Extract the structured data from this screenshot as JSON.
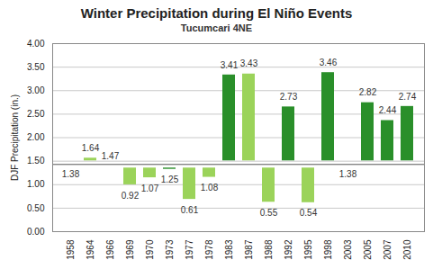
{
  "chart_data": {
    "type": "bar",
    "title": "Winter Precipitation during El Niño Events",
    "subtitle": "Tucumcari 4NE",
    "y_label": "DJF Precipitation (in.)",
    "categories": [
      "1958",
      "1964",
      "1966",
      "1969",
      "1970",
      "1973",
      "1977",
      "1978",
      "1983",
      "1987",
      "1988",
      "1992",
      "1995",
      "1998",
      "2003",
      "2005",
      "2007",
      "2010"
    ],
    "values": [
      1.38,
      1.64,
      1.47,
      0.92,
      1.07,
      1.25,
      0.61,
      1.08,
      3.41,
      3.43,
      0.55,
      2.73,
      0.54,
      3.46,
      1.38,
      2.82,
      2.44,
      2.74
    ],
    "baseline": 1.43,
    "colors": [
      "#9bd35a",
      "#9bd35a",
      "#9bd35a",
      "#9bd35a",
      "#9bd35a",
      "#2a8f2a",
      "#9bd35a",
      "#9bd35a",
      "#2a8f2a",
      "#9bd35a",
      "#9bd35a",
      "#2a8f2a",
      "#9bd35a",
      "#2a8f2a",
      "#9bd35a",
      "#2a8f2a",
      "#2a8f2a",
      "#2a8f2a"
    ],
    "ylim": [
      0,
      4
    ],
    "yticks": [
      {
        "value": 0,
        "label": "0.00"
      },
      {
        "value": 0.5,
        "label": "0.50"
      },
      {
        "value": 1,
        "label": "1.00"
      },
      {
        "value": 1.5,
        "label": "1.50"
      },
      {
        "value": 2,
        "label": "2.00"
      },
      {
        "value": 2.5,
        "label": "2.50"
      },
      {
        "value": 3,
        "label": "3.00"
      },
      {
        "value": 3.5,
        "label": "3.50"
      },
      {
        "value": 4,
        "label": "4.00"
      }
    ],
    "grid": true,
    "data_labels": true
  }
}
